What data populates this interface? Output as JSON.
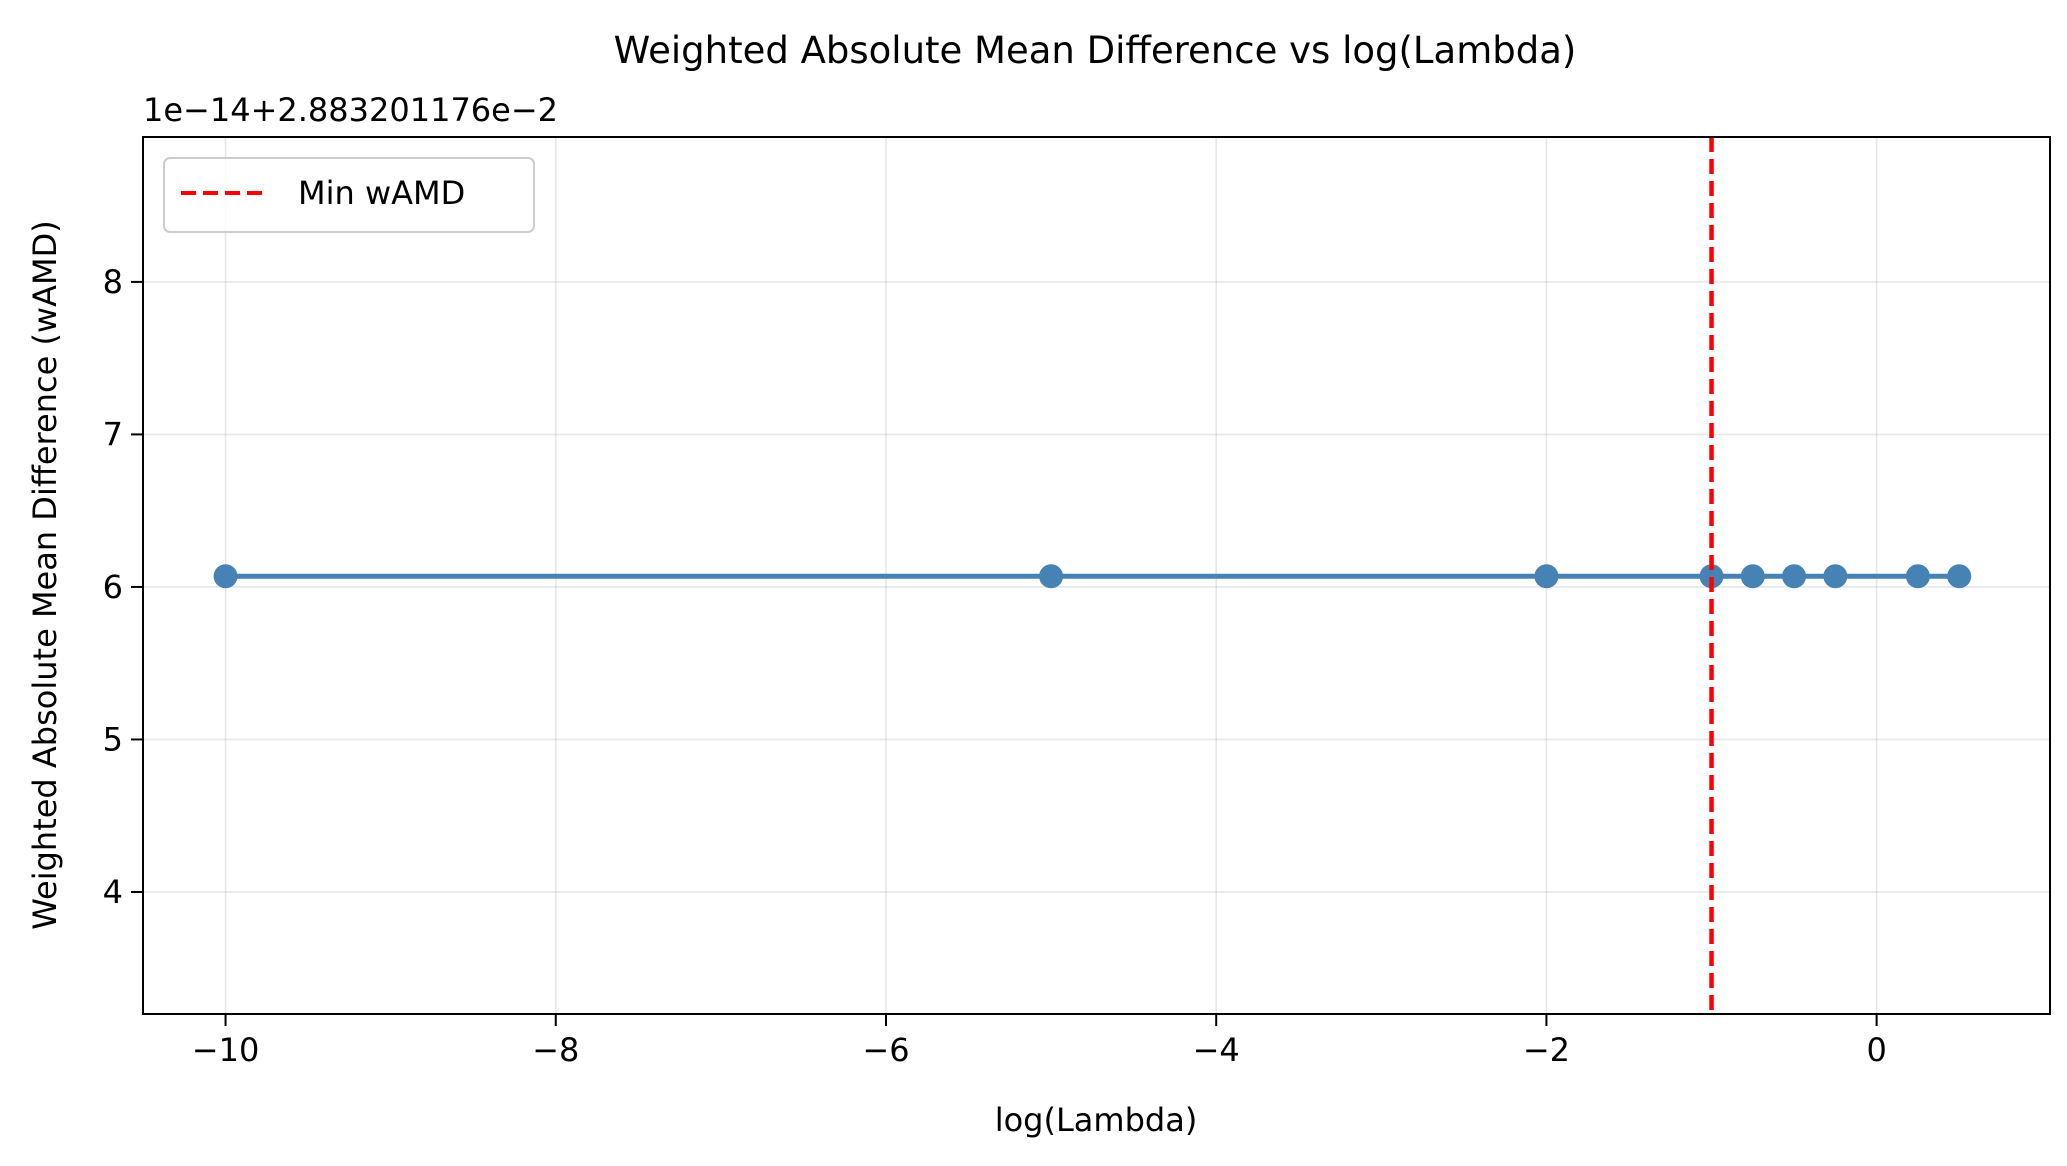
{
  "chart_data": {
    "type": "line",
    "title": "Weighted Absolute Mean Difference vs log(Lambda)",
    "xlabel": "log(Lambda)",
    "ylabel": "Weighted Absolute Mean Difference (wAMD)",
    "y_offset_text": "1e−14+2.883201176e−2",
    "xlim": [
      -10.5,
      1.05
    ],
    "ylim": [
      3.2,
      8.95
    ],
    "x_ticks": [
      -10,
      -8,
      -6,
      -4,
      -2,
      0
    ],
    "x_tick_labels": [
      "−10",
      "−8",
      "−6",
      "−4",
      "−2",
      "0"
    ],
    "y_ticks": [
      4,
      5,
      6,
      7,
      8
    ],
    "y_tick_labels": [
      "4",
      "5",
      "6",
      "7",
      "8"
    ],
    "grid": true,
    "legend_position": "upper-left",
    "series": [
      {
        "color": "#4682b4",
        "marker": "circle",
        "x": [
          -10,
          -5,
          -2,
          -1,
          -0.75,
          -0.5,
          -0.25,
          0.25,
          0.5
        ],
        "y": [
          6.07,
          6.07,
          6.07,
          6.07,
          6.07,
          6.07,
          6.07,
          6.07,
          6.07
        ]
      }
    ],
    "vlines": [
      {
        "name": "Min wAMD",
        "x": -1,
        "color": "#ff0000",
        "style": "dashed"
      }
    ],
    "legend": [
      {
        "label": "Min wAMD",
        "color": "#ff0000",
        "style": "dashed"
      }
    ]
  }
}
